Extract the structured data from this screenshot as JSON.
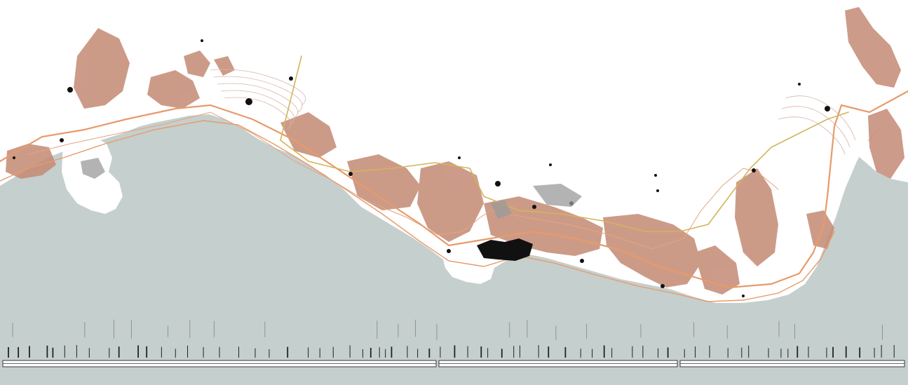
{
  "map": {
    "type": "coastal-territory-strip-map",
    "colors": {
      "sea": "#c5cfcd",
      "land": "#ffffff",
      "terrain": "#c48a74",
      "terrain_dark": "#a86a55",
      "contour": "#d7b6a8",
      "road_primary": "#e89a6a",
      "road_secondary": "#d4b45a",
      "urban": "#111111",
      "urban_grey": "#9a9a9a",
      "bar": "#3a3a3a"
    },
    "layers": [
      "sea",
      "coastline",
      "terrain-relief",
      "contour-lines",
      "roads",
      "railway",
      "urban-areas",
      "station-ticks",
      "distance-bar"
    ],
    "bottom_bar": {
      "segments": 3,
      "tick_rows": 2
    }
  }
}
